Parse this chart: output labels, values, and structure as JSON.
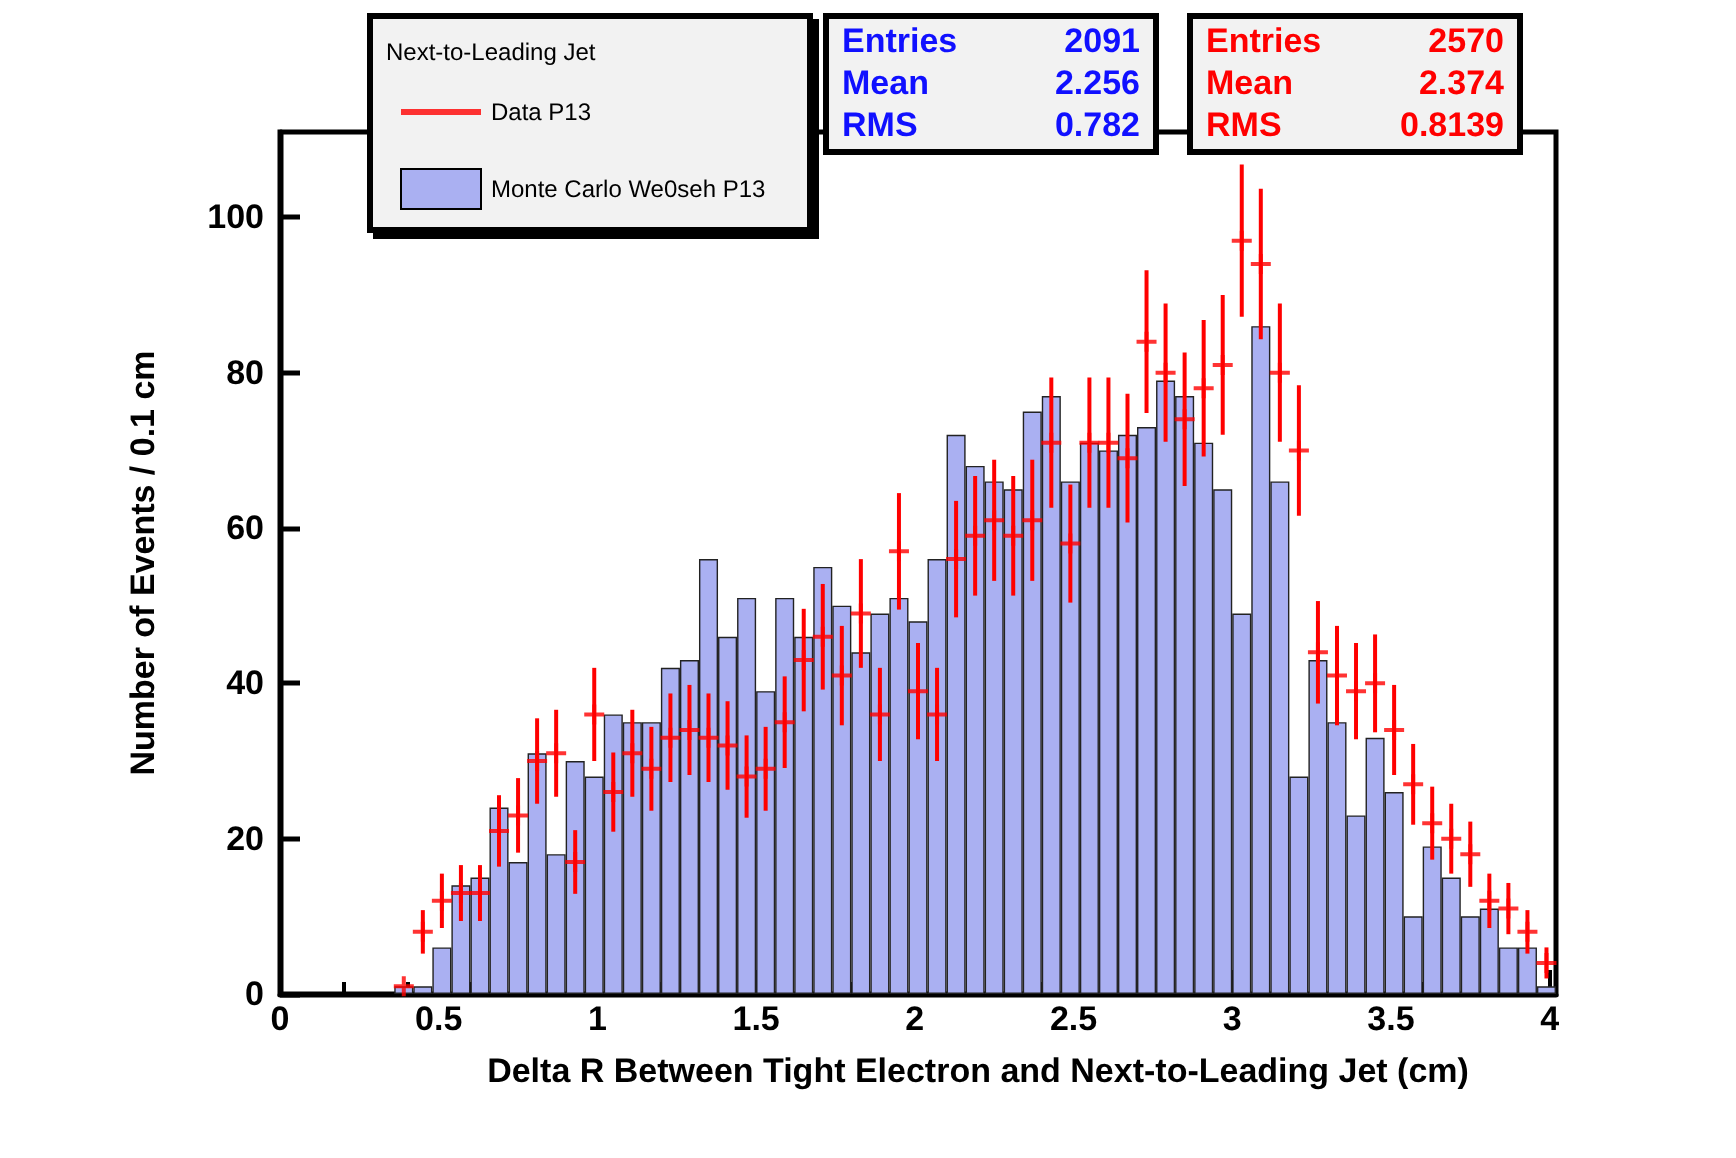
{
  "chart_data": {
    "type": "histogram",
    "xlabel": "Delta R Between Tight Electron and Next-to-Leading Jet (cm)",
    "ylabel": "Number of Events / 0.1 cm",
    "legend_title": "Next-to-Leading Jet",
    "bins": [
      0,
      0.06,
      0.12,
      0.18,
      0.24,
      0.3,
      0.36,
      0.42,
      0.48,
      0.54,
      0.6,
      0.66,
      0.72,
      0.78,
      0.84,
      0.9,
      0.96,
      1.02,
      1.08,
      1.14,
      1.2,
      1.26,
      1.32,
      1.38,
      1.44,
      1.5,
      1.56,
      1.62,
      1.68,
      1.74,
      1.8,
      1.86,
      1.92,
      1.98,
      2.04,
      2.1,
      2.16,
      2.22,
      2.28,
      2.34,
      2.4,
      2.46,
      2.52,
      2.58,
      2.64,
      2.7,
      2.76,
      2.82,
      2.88,
      2.94,
      3,
      3.06,
      3.12,
      3.18,
      3.24,
      3.3,
      3.36,
      3.42,
      3.48,
      3.54,
      3.6,
      3.66,
      3.72,
      3.78,
      3.84,
      3.9,
      3.96,
      4.02
    ],
    "series": [
      {
        "name": "Data P13",
        "type": "scatter",
        "color": "#ff0000",
        "x": [
          0.39,
          0.45,
          0.51,
          0.57,
          0.63,
          0.69,
          0.75,
          0.81,
          0.87,
          0.93,
          0.99,
          1.05,
          1.11,
          1.17,
          1.23,
          1.29,
          1.35,
          1.41,
          1.47,
          1.53,
          1.59,
          1.65,
          1.71,
          1.77,
          1.83,
          1.89,
          1.95,
          2.01,
          2.07,
          2.13,
          2.19,
          2.25,
          2.31,
          2.37,
          2.43,
          2.49,
          2.55,
          2.61,
          2.67,
          2.73,
          2.79,
          2.85,
          2.91,
          2.97,
          3.03,
          3.09,
          3.15,
          3.21,
          3.27,
          3.33,
          3.39,
          3.45,
          3.51,
          3.57,
          3.63,
          3.69,
          3.75,
          3.81,
          3.87,
          3.93,
          3.99
        ],
        "values": [
          1,
          8,
          12,
          13,
          13,
          21,
          23,
          30,
          31,
          17,
          36,
          26,
          31,
          29,
          33,
          34,
          33,
          32,
          28,
          29,
          35,
          43,
          46,
          41,
          49,
          36,
          57,
          39,
          36,
          56,
          59,
          61,
          59,
          61,
          71,
          58,
          71,
          71,
          69,
          84,
          80,
          74,
          78,
          81,
          97,
          94,
          80,
          70,
          44,
          41,
          39,
          40,
          34,
          27,
          22,
          20,
          18,
          12,
          11,
          8,
          4
        ],
        "errors": [
          null,
          2.8,
          3.5,
          3.6,
          3.6,
          4.6,
          4.8,
          5.5,
          5.6,
          4.1,
          6,
          5.1,
          5.6,
          5.4,
          5.7,
          5.8,
          5.7,
          5.7,
          5.3,
          5.4,
          5.9,
          6.6,
          6.8,
          6.4,
          7,
          6,
          7.5,
          6.2,
          6,
          7.5,
          7.7,
          7.8,
          7.7,
          7.8,
          8.4,
          7.6,
          8.4,
          8.4,
          8.3,
          9.2,
          8.9,
          8.6,
          8.8,
          9,
          9.8,
          9.7,
          8.9,
          8.4,
          6.6,
          6.4,
          6.2,
          6.3,
          5.8,
          5.2,
          4.7,
          4.5,
          4.2,
          3.5,
          3.3,
          2.8,
          2
        ]
      },
      {
        "name": "Monte Carlo We0seh P13",
        "type": "histogram",
        "color": "#aab0f2",
        "values": [
          0,
          0,
          0,
          0,
          0,
          0,
          1,
          1,
          6,
          14,
          15,
          24,
          17,
          31,
          18,
          30,
          28,
          36,
          35,
          35,
          42,
          43,
          56,
          46,
          51,
          39,
          51,
          46,
          55,
          50,
          44,
          49,
          51,
          48,
          56,
          72,
          68,
          66,
          65,
          75,
          77,
          66,
          71,
          70,
          72,
          73,
          79,
          77,
          71,
          65,
          49,
          86,
          66,
          28,
          43,
          35,
          23,
          33,
          26,
          10,
          19,
          15,
          10,
          11,
          6,
          6,
          1
        ]
      }
    ],
    "xlim": [
      0,
      4.02
    ],
    "xticks": [
      0,
      0.5,
      1,
      1.5,
      2,
      2.5,
      3,
      3.5,
      4
    ],
    "ylim": [
      0,
      111
    ],
    "yticks": [
      0,
      20,
      40,
      60,
      80,
      100
    ],
    "grid": false,
    "legend": "top left",
    "annotations": [
      "Entries 2091",
      "Mean 2.256",
      "RMS 0.782",
      "Entries 2570",
      "Mean 2.374",
      "RMS 0.8139"
    ]
  }
}
